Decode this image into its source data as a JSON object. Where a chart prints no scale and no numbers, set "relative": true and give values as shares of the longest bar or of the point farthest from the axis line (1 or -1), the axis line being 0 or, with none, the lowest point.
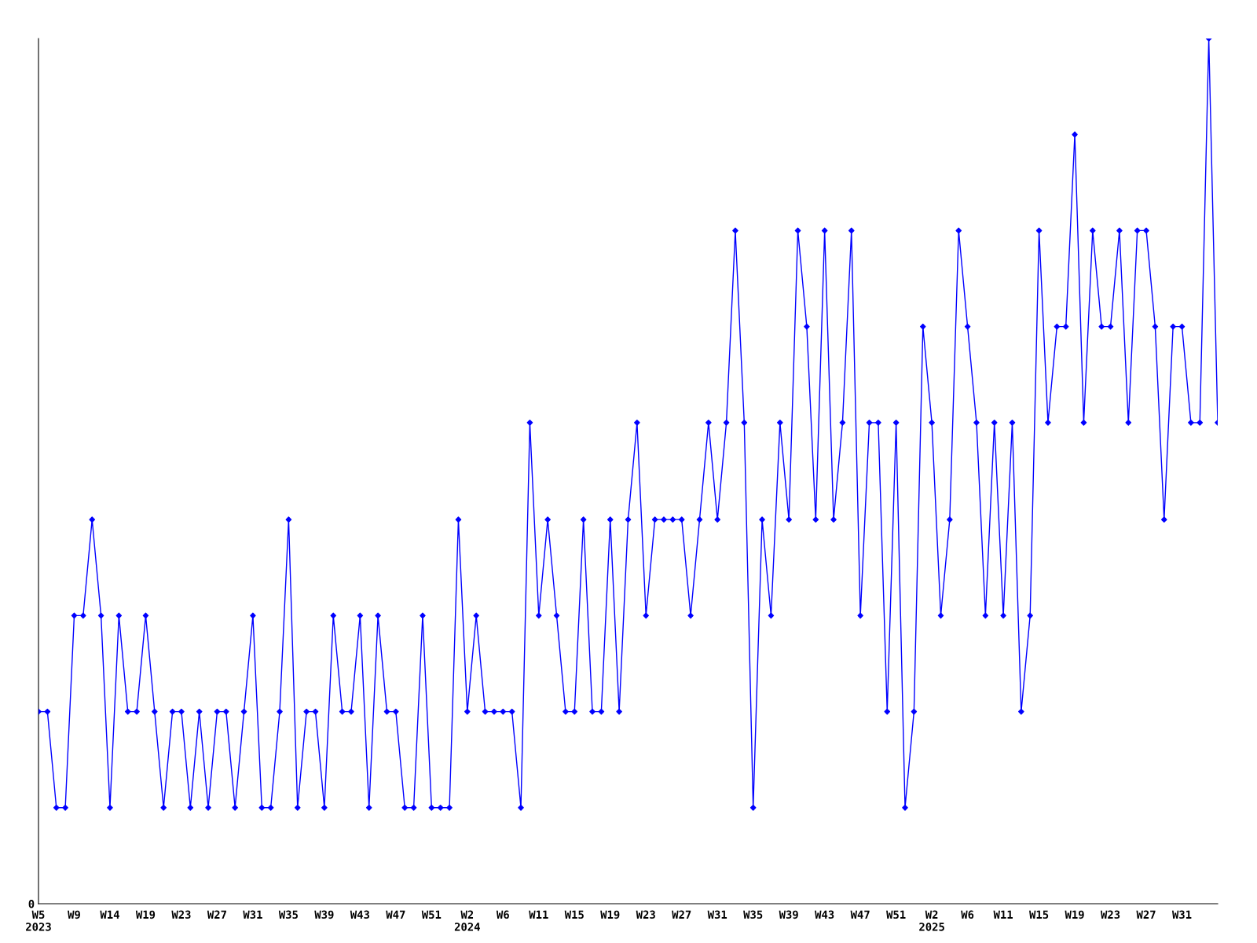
{
  "chart_data": {
    "type": "line",
    "relative": true,
    "grid": false,
    "marker": "diamond",
    "line_style": "solid",
    "annotations": [
      "0"
    ],
    "categories": [
      "W5\n2023",
      null,
      null,
      null,
      "W9",
      null,
      null,
      null,
      "W14",
      null,
      null,
      null,
      "W19",
      null,
      null,
      null,
      "W23",
      null,
      null,
      null,
      "W27",
      null,
      null,
      null,
      "W31",
      null,
      null,
      null,
      "W35",
      null,
      null,
      null,
      "W39",
      null,
      null,
      null,
      "W43",
      null,
      null,
      null,
      "W47",
      null,
      null,
      null,
      "W51",
      null,
      null,
      null,
      "W2\n2024",
      null,
      null,
      null,
      "W6",
      null,
      null,
      null,
      "W11",
      null,
      null,
      null,
      "W15",
      null,
      null,
      null,
      "W19",
      null,
      null,
      null,
      "W23",
      null,
      null,
      null,
      "W27",
      null,
      null,
      null,
      "W31",
      null,
      null,
      null,
      "W35",
      null,
      null,
      null,
      "W39",
      null,
      null,
      null,
      "W43",
      null,
      null,
      null,
      "W47",
      null,
      null,
      null,
      "W51",
      null,
      null,
      null,
      "W2\n2025",
      null,
      null,
      null,
      "W6",
      null,
      null,
      null,
      "W11",
      null,
      null,
      null,
      "W15",
      null,
      null,
      null,
      "W19",
      null,
      null,
      null,
      "W23",
      null,
      null,
      null,
      "W27",
      null,
      null,
      null,
      "W31",
      null,
      null,
      null,
      null
    ],
    "series": [
      {
        "color": "#0000ff",
        "values": [
          0.222,
          0.222,
          0.111,
          0.111,
          0.333,
          0.333,
          0.444,
          0.333,
          0.111,
          0.333,
          0.222,
          0.222,
          0.333,
          0.222,
          0.111,
          0.222,
          0.222,
          0.111,
          0.222,
          0.111,
          0.222,
          0.222,
          0.111,
          0.222,
          0.333,
          0.111,
          0.111,
          0.222,
          0.444,
          0.111,
          0.222,
          0.222,
          0.111,
          0.333,
          0.222,
          0.222,
          0.333,
          0.111,
          0.333,
          0.222,
          0.222,
          0.111,
          0.111,
          0.333,
          0.111,
          0.111,
          0.111,
          0.444,
          0.222,
          0.333,
          0.222,
          0.222,
          0.222,
          0.222,
          0.111,
          0.556,
          0.333,
          0.444,
          0.333,
          0.222,
          0.222,
          0.444,
          0.222,
          0.222,
          0.444,
          0.222,
          0.444,
          0.556,
          0.333,
          0.444,
          0.444,
          0.444,
          0.444,
          0.333,
          0.444,
          0.556,
          0.444,
          0.556,
          0.778,
          0.556,
          0.111,
          0.444,
          0.333,
          0.556,
          0.444,
          0.778,
          0.667,
          0.444,
          0.778,
          0.444,
          0.556,
          0.778,
          0.333,
          0.556,
          0.556,
          0.222,
          0.556,
          0.111,
          0.222,
          0.667,
          0.556,
          0.333,
          0.444,
          0.778,
          0.667,
          0.556,
          0.333,
          0.556,
          0.333,
          0.556,
          0.222,
          0.333,
          0.778,
          0.556,
          0.667,
          0.667,
          0.889,
          0.556,
          0.778,
          0.667,
          0.667,
          0.778,
          0.556,
          0.778,
          0.778,
          0.667,
          0.444,
          0.667,
          0.667,
          0.556,
          0.556,
          1,
          0.556
        ]
      }
    ]
  }
}
